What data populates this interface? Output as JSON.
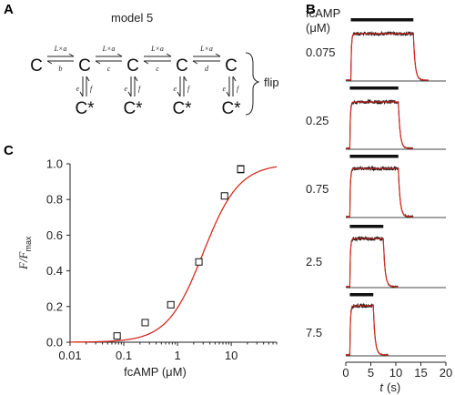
{
  "panels": {
    "a": {
      "letter": "A",
      "title": "model 5",
      "top_state": "C",
      "bottom_state": "C*",
      "forward_labels": [
        "L×a",
        "L×a",
        "L×a",
        "L×a"
      ],
      "backward_labels": [
        "b",
        "c",
        "c",
        "d"
      ],
      "flip_down_label": "e",
      "flip_up_label": "f",
      "flip_group_label": "flip"
    },
    "b": {
      "letter": "B"
    },
    "c": {
      "letter": "C"
    }
  },
  "chart_data": [
    {
      "type": "scatter",
      "panel": "C",
      "xlabel": "fcAMP (μM)",
      "ylabel_main": "F/F",
      "ylabel_sub": "max",
      "xscale": "log",
      "xlim": [
        0.01,
        70
      ],
      "ylim": [
        0.0,
        1.0
      ],
      "xticks": [
        0.01,
        0.1,
        1,
        10
      ],
      "xtick_labels": [
        "0.01",
        "0.1",
        "1",
        "10"
      ],
      "yticks": [
        0.0,
        0.2,
        0.4,
        0.6,
        0.8,
        1.0
      ],
      "ytick_labels": [
        "0.0",
        "0.2",
        "0.4",
        "0.6",
        "0.8",
        "1.0"
      ],
      "points": [
        {
          "x": 0.075,
          "y": 0.035,
          "err": 0.01
        },
        {
          "x": 0.25,
          "y": 0.11,
          "err": 0.012
        },
        {
          "x": 0.75,
          "y": 0.21,
          "err": 0.015
        },
        {
          "x": 2.5,
          "y": 0.45,
          "err": 0.015
        },
        {
          "x": 7.5,
          "y": 0.82,
          "err": 0.015
        },
        {
          "x": 15,
          "y": 0.97,
          "err": 0.02
        }
      ],
      "fit": {
        "ec50": 3.0,
        "hill": 1.3
      },
      "colors": {
        "fit": "#d62a1f",
        "marker": "#111111"
      }
    },
    {
      "type": "line",
      "panel": "B",
      "legend_title_1": "fcAMP",
      "legend_title_2": "(μM)",
      "xlabel_var": "t",
      "xlabel_unit": "(s)",
      "xlim": [
        0,
        20
      ],
      "xticks": [
        0,
        5,
        10,
        15,
        20
      ],
      "xtick_labels": [
        "0",
        "5",
        "10",
        "15",
        "20"
      ],
      "traces": [
        {
          "conc": "0.075",
          "bar": [
            1,
            13.5
          ],
          "on": 1,
          "off": 13.5,
          "amp": 0.85
        },
        {
          "conc": "0.25",
          "bar": [
            0.8,
            10.5
          ],
          "on": 0.8,
          "off": 10.5,
          "amp": 0.85
        },
        {
          "conc": "0.75",
          "bar": [
            0.8,
            10.5
          ],
          "on": 0.8,
          "off": 10.5,
          "amp": 0.88
        },
        {
          "conc": "2.5",
          "bar": [
            0.8,
            7.5
          ],
          "on": 0.8,
          "off": 7.5,
          "amp": 0.88
        },
        {
          "conc": "7.5",
          "bar": [
            0.8,
            5.5
          ],
          "on": 0.8,
          "off": 5.5,
          "amp": 0.9
        }
      ],
      "colors": {
        "data": "#111111",
        "fit": "#d62a1f",
        "bar": "#111111"
      }
    }
  ]
}
